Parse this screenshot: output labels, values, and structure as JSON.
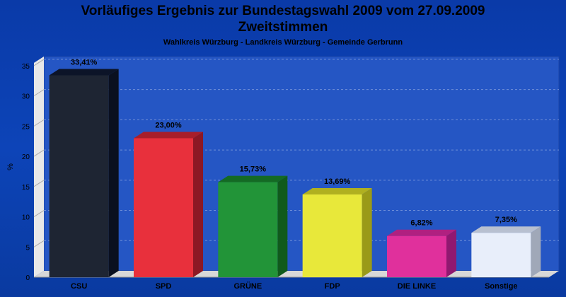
{
  "header": {
    "title_line1": "Vorläufiges Ergebnis zur Bundestagswahl 2009 vom 27.09.2009",
    "title_line2": "Zweitstimmen",
    "subtitle": "Wahlkreis Würzburg - Landkreis Würzburg - Gemeinde Gerbrunn"
  },
  "colors": {
    "background": "#0a3aa8",
    "plot_back": "#2050c0",
    "floor": "#d8d8d8"
  },
  "chart_data": {
    "type": "bar",
    "title": "Vorläufiges Ergebnis zur Bundestagswahl 2009 vom 27.09.2009",
    "subtitle": "Wahlkreis Würzburg - Landkreis Würzburg - Gemeinde Gerbrunn",
    "xlabel": "",
    "ylabel": "%",
    "ylim": [
      0,
      35
    ],
    "yticks": [
      0,
      5,
      10,
      15,
      20,
      25,
      30,
      35
    ],
    "grid": true,
    "categories": [
      "CSU",
      "SPD",
      "GRÜNE",
      "FDP",
      "DIE LINKE",
      "Sonstige"
    ],
    "values": [
      33.41,
      23.0,
      15.73,
      13.69,
      6.82,
      7.35
    ],
    "value_labels": [
      "33,41%",
      "23,00%",
      "15,73%",
      "13,69%",
      "6,82%",
      "7,35%"
    ],
    "bar_colors": [
      "#1e2533",
      "#e8303c",
      "#229438",
      "#e8e83a",
      "#e0309c",
      "#e8eefa"
    ],
    "bar_top_colors": [
      "#0c1428",
      "#a81e2a",
      "#146a24",
      "#b0b020",
      "#b02080",
      "#b8c0d0"
    ],
    "bar_side_colors": [
      "#0a1020",
      "#8c1824",
      "#105a1c",
      "#9a9a18",
      "#901870",
      "#a0a8b8"
    ]
  }
}
